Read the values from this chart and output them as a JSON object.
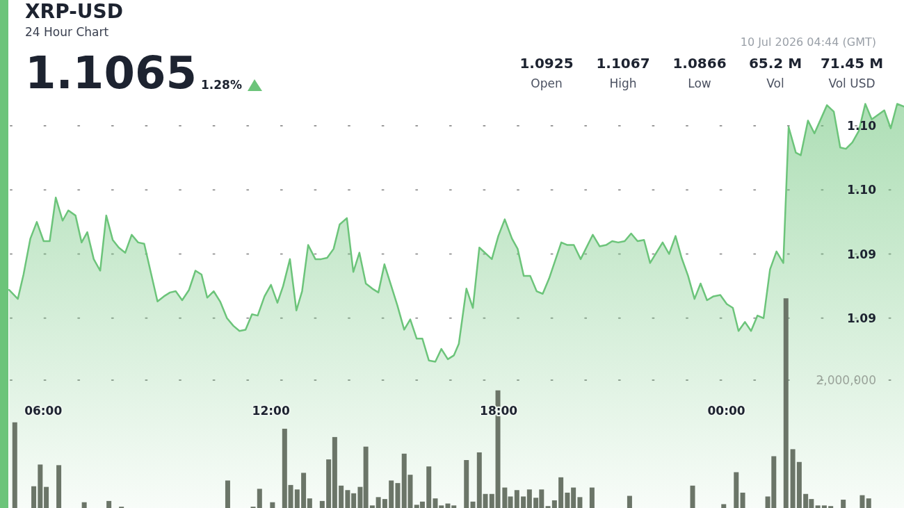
{
  "chart_data": {
    "type": "area",
    "title": "XRP-USD",
    "subtitle": "24 Hour Chart",
    "annotations": [
      "1.1065",
      "1.28%",
      "10 Jul 2026 04:44 (GMT)",
      "1.0925",
      "Open",
      "1.1067",
      "High",
      "1.0866",
      "Low",
      "65.2 M",
      "Vol",
      "71.45 M",
      "Vol USD"
    ],
    "xlim": [
      5.08,
      28.68
    ],
    "xticks": [
      {
        "value": 6,
        "label": "06:00"
      },
      {
        "value": 12,
        "label": "12:00"
      },
      {
        "value": 18,
        "label": "18:00"
      },
      {
        "value": 24,
        "label": "00:00"
      }
    ],
    "ylim": [
      1.0752,
      1.1148
    ],
    "yticks": [
      {
        "value": 1.09,
        "label": "1.09"
      },
      {
        "value": 1.095,
        "label": "1.09"
      },
      {
        "value": 1.1,
        "label": "1.10"
      },
      {
        "value": 1.105,
        "label": "1.10"
      }
    ],
    "y2lim": [
      0,
      7946000
    ],
    "y2ticks": [
      {
        "value": 2000000,
        "label": "2,000,000"
      }
    ],
    "grid": "y",
    "series": [
      {
        "color": "#6cc47a",
        "x": [
          5.1,
          5.33,
          5.48,
          5.66,
          5.83,
          6.01,
          6.17,
          6.33,
          6.51,
          6.66,
          6.85,
          7.01,
          7.16,
          7.33,
          7.5,
          7.66,
          7.83,
          7.99,
          8.16,
          8.33,
          8.5,
          8.66,
          9.01,
          9.18,
          9.34,
          9.49,
          9.66,
          9.84,
          10.01,
          10.17,
          10.32,
          10.49,
          10.66,
          10.84,
          11.01,
          11.17,
          11.33,
          11.5,
          11.65,
          11.83,
          12,
          12.17,
          12.32,
          12.5,
          12.67,
          12.82,
          12.98,
          13.17,
          13.32,
          13.48,
          13.65,
          13.81,
          14,
          14.17,
          14.33,
          14.5,
          14.67,
          14.83,
          14.99,
          15.16,
          15.33,
          15.51,
          15.67,
          15.84,
          15.99,
          16.16,
          16.33,
          16.49,
          16.66,
          16.82,
          16.95,
          17.15,
          17.32,
          17.49,
          17.82,
          17.99,
          18.16,
          18.35,
          18.5,
          18.66,
          18.83,
          19,
          19.16,
          19.33,
          19.65,
          19.81,
          19.98,
          20.16,
          20.48,
          20.66,
          20.83,
          20.99,
          21.15,
          21.32,
          21.49,
          21.66,
          21.83,
          21.99,
          22.32,
          22.49,
          22.66,
          22.82,
          22.99,
          23.16,
          23.32,
          23.49,
          23.66,
          23.84,
          24.01,
          24.17,
          24.32,
          24.49,
          24.65,
          24.82,
          24.98,
          25.15,
          25.32,
          25.5,
          25.64,
          25.83,
          25.96,
          26.15,
          26.32,
          26.65,
          26.83,
          27,
          27.15,
          27.32,
          27.49,
          27.66,
          27.83,
          28.16,
          28.33,
          28.5,
          28.68
        ],
        "values": [
          1.0922,
          1.0915,
          1.0934,
          1.0962,
          1.0975,
          1.096,
          1.096,
          1.0994,
          1.0976,
          1.0984,
          1.098,
          1.0959,
          1.0967,
          1.0946,
          1.0937,
          1.098,
          1.0961,
          1.0955,
          1.0951,
          1.0965,
          1.0959,
          1.0958,
          1.0913,
          1.0917,
          1.092,
          1.0921,
          1.0914,
          1.0922,
          1.0937,
          1.0934,
          1.0916,
          1.0921,
          1.0913,
          1.09,
          1.0894,
          1.089,
          1.0891,
          1.0903,
          1.0902,
          1.0917,
          1.0926,
          1.0912,
          1.0925,
          1.0946,
          1.0906,
          1.0921,
          1.0957,
          1.0946,
          1.0946,
          1.0947,
          1.0954,
          1.0973,
          1.0978,
          1.0936,
          1.0951,
          1.0927,
          1.0923,
          1.092,
          1.0942,
          1.0926,
          1.091,
          1.0891,
          1.0899,
          1.0884,
          1.0884,
          1.0867,
          1.0866,
          1.0876,
          1.0868,
          1.0871,
          1.088,
          1.0923,
          1.0908,
          1.0955,
          1.0946,
          1.0964,
          1.0977,
          1.0962,
          1.0954,
          1.0933,
          1.0933,
          1.0921,
          1.0919,
          1.0931,
          1.0959,
          1.0957,
          1.0957,
          1.0946,
          1.0965,
          1.0956,
          1.0957,
          1.096,
          1.0959,
          1.096,
          1.0966,
          1.096,
          1.0961,
          1.0943,
          1.0959,
          1.095,
          1.0964,
          1.0947,
          1.0933,
          1.0915,
          1.0927,
          1.0914,
          1.0917,
          1.0918,
          1.0911,
          1.0908,
          1.089,
          1.0897,
          1.089,
          1.0902,
          1.09,
          1.0938,
          1.0952,
          1.0943,
          1.1049,
          1.1029,
          1.1027,
          1.1054,
          1.1044,
          1.1066,
          1.1061,
          1.1033,
          1.1032,
          1.1037,
          1.1046,
          1.1067,
          1.1055,
          1.1062,
          1.1048,
          1.1067,
          1.1065
        ]
      },
      {
        "type": "bar",
        "axis": "y2",
        "color": "#6b7568",
        "x": [
          5.25,
          5.75,
          5.92,
          6.08,
          6.41,
          7.08,
          7.73,
          8.06,
          10.86,
          11.53,
          11.7,
          12.04,
          12.36,
          12.52,
          12.69,
          12.86,
          13.02,
          13.35,
          13.52,
          13.68,
          13.85,
          14.02,
          14.18,
          14.35,
          14.5,
          14.67,
          14.83,
          15,
          15.17,
          15.34,
          15.51,
          15.67,
          15.84,
          15.99,
          16.16,
          16.33,
          16.49,
          16.66,
          16.82,
          17.15,
          17.32,
          17.49,
          17.65,
          17.82,
          17.98,
          18.16,
          18.31,
          18.48,
          18.65,
          18.81,
          18.98,
          19.13,
          19.3,
          19.47,
          19.64,
          19.81,
          19.97,
          20.14,
          20.46,
          21.45,
          23.11,
          23.93,
          24.26,
          24.43,
          25.09,
          25.25,
          25.57,
          25.75,
          25.92,
          26.09,
          26.24,
          26.41,
          26.58,
          26.75,
          27.08,
          27.58,
          27.75
        ],
        "values": [
          1340000,
          340000,
          680000,
          330000,
          670000,
          90000,
          110000,
          20000,
          430000,
          20000,
          300000,
          90000,
          1240000,
          360000,
          290000,
          550000,
          150000,
          110000,
          760000,
          1110000,
          350000,
          280000,
          230000,
          330000,
          960000,
          40000,
          170000,
          140000,
          430000,
          390000,
          850000,
          520000,
          50000,
          100000,
          650000,
          150000,
          40000,
          70000,
          40000,
          750000,
          100000,
          870000,
          220000,
          220000,
          1840000,
          320000,
          180000,
          280000,
          180000,
          290000,
          160000,
          290000,
          30000,
          120000,
          480000,
          240000,
          320000,
          170000,
          320000,
          190000,
          350000,
          60000,
          560000,
          240000,
          180000,
          810000,
          3280000,
          920000,
          720000,
          220000,
          140000,
          40000,
          40000,
          30000,
          130000,
          200000,
          150000
        ]
      }
    ]
  }
}
